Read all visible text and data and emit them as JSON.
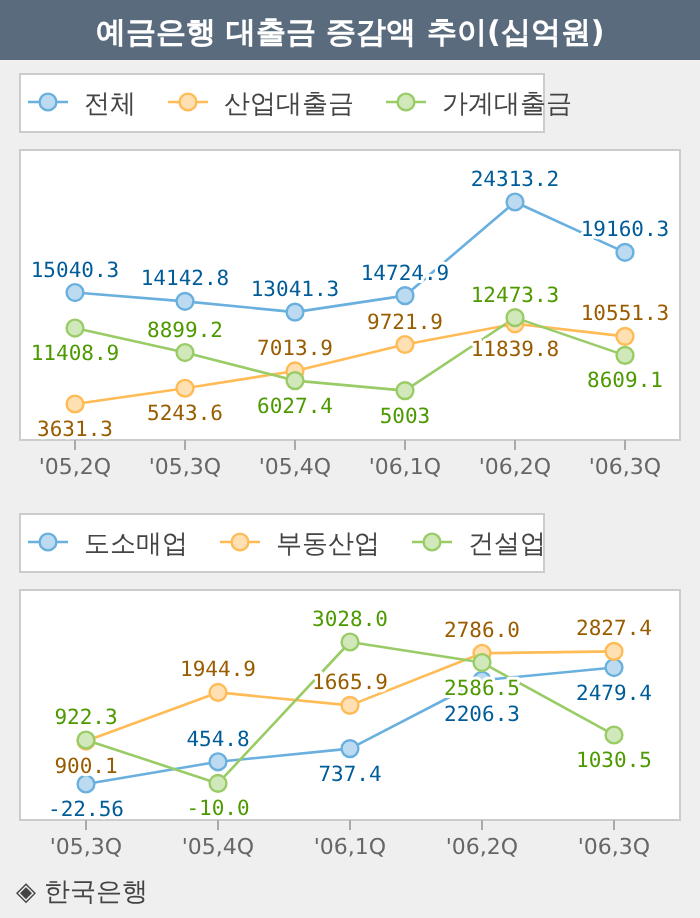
{
  "chart_data": [
    {
      "type": "line",
      "title": "예금은행 대출금 증감액 추이(십억원)",
      "categories": [
        "'05,2Q",
        "'05,3Q",
        "'05,4Q",
        "'06,1Q",
        "'06,2Q",
        "'06,3Q"
      ],
      "series": [
        {
          "name": "전체",
          "color": "#6ab0de",
          "values": [
            15040.3,
            14142.8,
            13041.3,
            14724.9,
            24313.2,
            19160.3
          ]
        },
        {
          "name": "산업대출금",
          "color": "#ffbb55",
          "values": [
            3631.3,
            5243.6,
            7013.9,
            9721.9,
            11839.8,
            10551.3
          ]
        },
        {
          "name": "가계대출금",
          "color": "#99cc66",
          "values": [
            11408.9,
            8899.2,
            6027.4,
            5003,
            12473.3,
            8609.1
          ]
        }
      ],
      "data_labels": true,
      "legend": "top",
      "marker": "circle"
    },
    {
      "type": "line",
      "categories": [
        "'05,3Q",
        "'05,4Q",
        "'06,1Q",
        "'06,2Q",
        "'06,3Q"
      ],
      "series": [
        {
          "name": "도소매업",
          "color": "#6ab0de",
          "values": [
            -22.56,
            454.8,
            737.4,
            2206.3,
            2479.4
          ]
        },
        {
          "name": "부동산업",
          "color": "#ffbb55",
          "values": [
            900.1,
            1944.9,
            1665.9,
            2786.0,
            2827.4
          ],
          "value_labels": [
            "900.1",
            "1944.9",
            "1665.9",
            "2786.0",
            "2827.4"
          ]
        },
        {
          "name": "건설업",
          "color": "#99cc66",
          "values": [
            922.3,
            -10.0,
            3028.0,
            2586.5,
            1030.5
          ],
          "value_labels": [
            "922.3",
            "-10.0",
            "3028.0",
            "2586.5",
            "1030.5"
          ]
        }
      ],
      "data_labels": true,
      "legend": "top",
      "marker": "circle",
      "annotations": [
        "◈ 한국은행"
      ]
    }
  ]
}
